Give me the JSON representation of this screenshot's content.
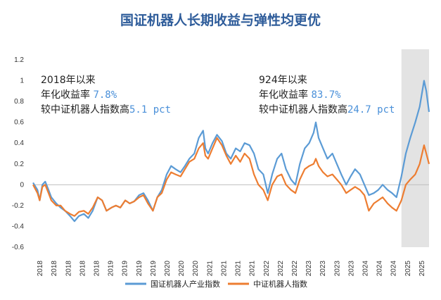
{
  "chart_data": {
    "type": "line",
    "title": "国证机器人长期收益与弹性均更优",
    "xlabel": "",
    "ylabel": "",
    "ylim": [
      -0.6,
      1.2
    ],
    "y_ticks": [
      "1.2",
      "1",
      "0.8",
      "0.6",
      "0.4",
      "0.2",
      "0",
      "-0.2",
      "-0.4",
      "-0.6"
    ],
    "x_tick_labels": [
      "2018",
      "2018",
      "2018",
      "2018",
      "2018",
      "2019",
      "2019",
      "2019",
      "2019",
      "2020",
      "2020",
      "2020",
      "2021",
      "2021",
      "2021",
      "2021",
      "2022",
      "2022",
      "2022",
      "2023",
      "2023",
      "2023",
      "2023",
      "2024",
      "2024",
      "2024",
      "2025",
      "2025"
    ],
    "x_range": [
      2018.0,
      2025.17
    ],
    "shaded_region": {
      "from": 2024.67,
      "to": 2025.17,
      "color": "#E3E3E3"
    },
    "grid": false,
    "legend_position": "bottom",
    "series": [
      {
        "name": "国证机器人产业指数",
        "color": "#5B9BD5",
        "points": [
          [
            2018.0,
            0.02
          ],
          [
            2018.08,
            -0.05
          ],
          [
            2018.12,
            -0.15
          ],
          [
            2018.17,
            0.0
          ],
          [
            2018.22,
            0.03
          ],
          [
            2018.28,
            -0.05
          ],
          [
            2018.33,
            -0.12
          ],
          [
            2018.42,
            -0.18
          ],
          [
            2018.5,
            -0.22
          ],
          [
            2018.58,
            -0.25
          ],
          [
            2018.67,
            -0.3
          ],
          [
            2018.75,
            -0.35
          ],
          [
            2018.83,
            -0.3
          ],
          [
            2018.92,
            -0.28
          ],
          [
            2019.0,
            -0.32
          ],
          [
            2019.08,
            -0.25
          ],
          [
            2019.17,
            -0.12
          ],
          [
            2019.25,
            -0.15
          ],
          [
            2019.33,
            -0.25
          ],
          [
            2019.42,
            -0.22
          ],
          [
            2019.5,
            -0.2
          ],
          [
            2019.58,
            -0.22
          ],
          [
            2019.67,
            -0.15
          ],
          [
            2019.75,
            -0.18
          ],
          [
            2019.83,
            -0.16
          ],
          [
            2019.92,
            -0.1
          ],
          [
            2020.0,
            -0.08
          ],
          [
            2020.08,
            -0.15
          ],
          [
            2020.17,
            -0.25
          ],
          [
            2020.25,
            -0.12
          ],
          [
            2020.33,
            -0.05
          ],
          [
            2020.42,
            0.1
          ],
          [
            2020.5,
            0.18
          ],
          [
            2020.58,
            0.15
          ],
          [
            2020.67,
            0.12
          ],
          [
            2020.75,
            0.18
          ],
          [
            2020.83,
            0.25
          ],
          [
            2020.92,
            0.3
          ],
          [
            2021.0,
            0.45
          ],
          [
            2021.08,
            0.52
          ],
          [
            2021.12,
            0.35
          ],
          [
            2021.17,
            0.3
          ],
          [
            2021.25,
            0.4
          ],
          [
            2021.33,
            0.48
          ],
          [
            2021.42,
            0.42
          ],
          [
            2021.5,
            0.3
          ],
          [
            2021.58,
            0.25
          ],
          [
            2021.67,
            0.35
          ],
          [
            2021.75,
            0.32
          ],
          [
            2021.83,
            0.4
          ],
          [
            2021.92,
            0.38
          ],
          [
            2022.0,
            0.3
          ],
          [
            2022.08,
            0.15
          ],
          [
            2022.17,
            0.1
          ],
          [
            2022.25,
            -0.08
          ],
          [
            2022.33,
            0.1
          ],
          [
            2022.42,
            0.25
          ],
          [
            2022.5,
            0.3
          ],
          [
            2022.58,
            0.15
          ],
          [
            2022.67,
            0.05
          ],
          [
            2022.75,
            0.0
          ],
          [
            2022.83,
            0.2
          ],
          [
            2022.92,
            0.35
          ],
          [
            2023.0,
            0.4
          ],
          [
            2023.08,
            0.5
          ],
          [
            2023.12,
            0.6
          ],
          [
            2023.17,
            0.45
          ],
          [
            2023.25,
            0.35
          ],
          [
            2023.33,
            0.25
          ],
          [
            2023.42,
            0.3
          ],
          [
            2023.5,
            0.2
          ],
          [
            2023.58,
            0.1
          ],
          [
            2023.67,
            0.0
          ],
          [
            2023.75,
            0.08
          ],
          [
            2023.83,
            0.15
          ],
          [
            2023.92,
            0.1
          ],
          [
            2024.0,
            0.0
          ],
          [
            2024.08,
            -0.1
          ],
          [
            2024.17,
            -0.08
          ],
          [
            2024.25,
            -0.05
          ],
          [
            2024.33,
            0.0
          ],
          [
            2024.42,
            -0.05
          ],
          [
            2024.5,
            -0.08
          ],
          [
            2024.58,
            -0.12
          ],
          [
            2024.67,
            0.08
          ],
          [
            2024.75,
            0.3
          ],
          [
            2024.83,
            0.45
          ],
          [
            2024.92,
            0.6
          ],
          [
            2025.0,
            0.75
          ],
          [
            2025.08,
            1.0
          ],
          [
            2025.12,
            0.9
          ],
          [
            2025.17,
            0.7
          ]
        ]
      },
      {
        "name": "中证机器人指数",
        "color": "#ED7D31",
        "points": [
          [
            2018.0,
            0.0
          ],
          [
            2018.08,
            -0.08
          ],
          [
            2018.12,
            -0.15
          ],
          [
            2018.17,
            -0.02
          ],
          [
            2018.22,
            0.0
          ],
          [
            2018.28,
            -0.08
          ],
          [
            2018.33,
            -0.15
          ],
          [
            2018.42,
            -0.2
          ],
          [
            2018.5,
            -0.2
          ],
          [
            2018.58,
            -0.25
          ],
          [
            2018.67,
            -0.28
          ],
          [
            2018.75,
            -0.3
          ],
          [
            2018.83,
            -0.26
          ],
          [
            2018.92,
            -0.25
          ],
          [
            2019.0,
            -0.28
          ],
          [
            2019.08,
            -0.22
          ],
          [
            2019.17,
            -0.12
          ],
          [
            2019.25,
            -0.15
          ],
          [
            2019.33,
            -0.25
          ],
          [
            2019.42,
            -0.22
          ],
          [
            2019.5,
            -0.2
          ],
          [
            2019.58,
            -0.22
          ],
          [
            2019.67,
            -0.15
          ],
          [
            2019.75,
            -0.18
          ],
          [
            2019.83,
            -0.16
          ],
          [
            2019.92,
            -0.12
          ],
          [
            2020.0,
            -0.1
          ],
          [
            2020.08,
            -0.18
          ],
          [
            2020.17,
            -0.25
          ],
          [
            2020.25,
            -0.12
          ],
          [
            2020.33,
            -0.08
          ],
          [
            2020.42,
            0.05
          ],
          [
            2020.5,
            0.12
          ],
          [
            2020.58,
            0.1
          ],
          [
            2020.67,
            0.08
          ],
          [
            2020.75,
            0.15
          ],
          [
            2020.83,
            0.22
          ],
          [
            2020.92,
            0.25
          ],
          [
            2021.0,
            0.35
          ],
          [
            2021.08,
            0.4
          ],
          [
            2021.12,
            0.28
          ],
          [
            2021.17,
            0.25
          ],
          [
            2021.25,
            0.35
          ],
          [
            2021.33,
            0.45
          ],
          [
            2021.42,
            0.38
          ],
          [
            2021.5,
            0.28
          ],
          [
            2021.58,
            0.2
          ],
          [
            2021.67,
            0.28
          ],
          [
            2021.75,
            0.22
          ],
          [
            2021.83,
            0.3
          ],
          [
            2021.92,
            0.25
          ],
          [
            2022.0,
            0.1
          ],
          [
            2022.08,
            0.0
          ],
          [
            2022.17,
            -0.05
          ],
          [
            2022.25,
            -0.15
          ],
          [
            2022.33,
            0.0
          ],
          [
            2022.42,
            0.08
          ],
          [
            2022.5,
            0.1
          ],
          [
            2022.58,
            0.0
          ],
          [
            2022.67,
            -0.05
          ],
          [
            2022.75,
            -0.08
          ],
          [
            2022.83,
            0.05
          ],
          [
            2022.92,
            0.15
          ],
          [
            2023.0,
            0.18
          ],
          [
            2023.08,
            0.2
          ],
          [
            2023.12,
            0.25
          ],
          [
            2023.17,
            0.18
          ],
          [
            2023.25,
            0.12
          ],
          [
            2023.33,
            0.08
          ],
          [
            2023.42,
            0.1
          ],
          [
            2023.5,
            0.05
          ],
          [
            2023.58,
            0.0
          ],
          [
            2023.67,
            -0.08
          ],
          [
            2023.75,
            -0.05
          ],
          [
            2023.83,
            -0.02
          ],
          [
            2023.92,
            -0.05
          ],
          [
            2024.0,
            -0.1
          ],
          [
            2024.08,
            -0.25
          ],
          [
            2024.17,
            -0.18
          ],
          [
            2024.25,
            -0.15
          ],
          [
            2024.33,
            -0.12
          ],
          [
            2024.42,
            -0.18
          ],
          [
            2024.5,
            -0.22
          ],
          [
            2024.58,
            -0.25
          ],
          [
            2024.67,
            -0.15
          ],
          [
            2024.75,
            0.0
          ],
          [
            2024.83,
            0.05
          ],
          [
            2024.92,
            0.1
          ],
          [
            2025.0,
            0.2
          ],
          [
            2025.08,
            0.38
          ],
          [
            2025.12,
            0.3
          ],
          [
            2025.17,
            0.2
          ]
        ]
      }
    ],
    "annotations": [
      {
        "lines": [
          "2018年以来",
          "年化收益率 ",
          "较中证机器人指数高"
        ],
        "values": [
          "",
          "7.8%",
          "5.1 pct"
        ]
      },
      {
        "lines": [
          "924年以来",
          "年化收益率 ",
          "较中证机器人指数高"
        ],
        "values": [
          "",
          "83.7%",
          "24.7 pct"
        ]
      }
    ]
  }
}
